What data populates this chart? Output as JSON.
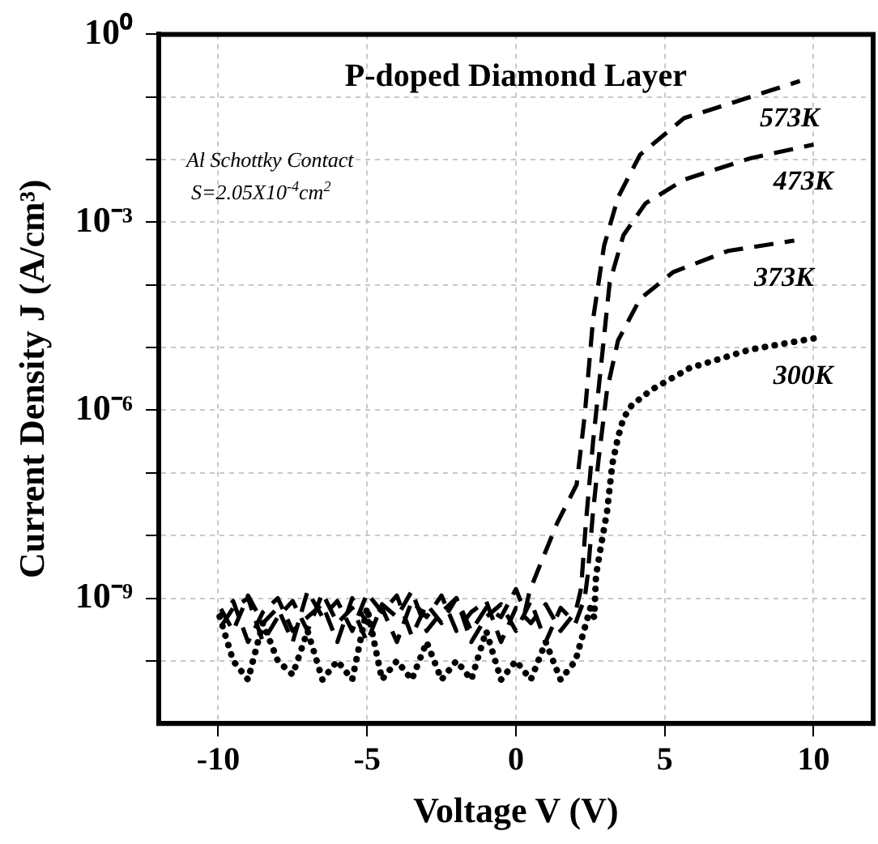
{
  "chart_data": {
    "type": "line",
    "title": "P-doped Diamond Layer",
    "xlabel": "Voltage V (V)",
    "ylabel": "Current Density J (A/cm³)",
    "annotations": [
      "Al Schottky Contact",
      "S=2.05X10$^{-4}$cm$^{2}$"
    ],
    "log": "y",
    "grid": true,
    "legend": false,
    "marker": "none",
    "xlim": [
      -12,
      12
    ],
    "xticks": [
      -10,
      -5,
      0,
      5,
      10
    ],
    "ylim": [
      1e-11,
      1
    ],
    "yticks": [
      {
        "value": 1,
        "label": "10⁰"
      },
      {
        "value": 0.1,
        "label": null
      },
      {
        "value": 0.01,
        "label": null
      },
      {
        "value": 0.001,
        "label": "10⁻³"
      },
      {
        "value": 0.0001,
        "label": null
      },
      {
        "value": 1e-05,
        "label": null
      },
      {
        "value": 1e-06,
        "label": "10⁻⁶"
      },
      {
        "value": 1e-07,
        "label": null
      },
      {
        "value": 1e-08,
        "label": null
      },
      {
        "value": 1e-09,
        "label": "10⁻⁹"
      },
      {
        "value": 1e-10,
        "label": null
      }
    ],
    "series": [
      {
        "name": "573K",
        "color": "#000000",
        "line_style": "dashed",
        "x": [
          -10,
          -9.5,
          -9,
          -8.5,
          -8,
          -7.5,
          -7,
          -6.5,
          -6,
          -5.5,
          -5,
          -4.5,
          -4,
          -3.5,
          -3,
          -2.5,
          -2,
          -1.5,
          -1,
          -0.5,
          0,
          0.3,
          0.46,
          0.74,
          1.39,
          2.04,
          2.31,
          2.59,
          2.96,
          3.43,
          4.17,
          5.65,
          7.87,
          9.54
        ],
        "values": [
          8e-10,
          3e-10,
          1.1e-09,
          4e-10,
          7e-10,
          2e-10,
          1.3e-09,
          5e-10,
          9e-10,
          3e-10,
          1.2e-09,
          6e-10,
          1.1e-09,
          2.5e-10,
          8e-10,
          4e-10,
          1e-09,
          3e-10,
          7e-10,
          5e-10,
          1.4e-09,
          6e-10,
          1.3e-09,
          2.8e-09,
          1.6e-08,
          6.5e-08,
          8.3e-07,
          2.8e-05,
          0.00042,
          0.0025,
          0.012,
          0.046,
          0.1,
          0.18
        ]
      },
      {
        "name": "473K",
        "color": "#000000",
        "line_style": "dashed",
        "x": [
          -10,
          -9.5,
          -9,
          -8.5,
          -8,
          -7.5,
          -7,
          -6.5,
          -6,
          -5.5,
          -5,
          -4.5,
          -4,
          -3.5,
          -3,
          -2.5,
          -2,
          -1.5,
          -1,
          -0.5,
          0,
          0.5,
          1,
          1.5,
          2,
          2.17,
          2.22,
          2.35,
          2.59,
          2.87,
          3.15,
          3.61,
          4.35,
          5.65,
          7.87,
          10
        ],
        "values": [
          5e-10,
          9e-10,
          2e-10,
          6e-10,
          1e-09,
          3e-10,
          5e-10,
          8e-10,
          2e-10,
          1e-09,
          4e-10,
          7e-10,
          2e-10,
          9e-10,
          5e-10,
          1.1e-09,
          3e-10,
          6e-10,
          9e-10,
          2e-10,
          7e-10,
          4e-10,
          8e-10,
          3e-10,
          6e-10,
          1.3e-09,
          2.3e-09,
          1.6e-08,
          3.1e-07,
          5.8e-06,
          0.00011,
          0.00062,
          0.002,
          0.0048,
          0.0105,
          0.0174
        ]
      },
      {
        "name": "373K",
        "color": "#000000",
        "line_style": "dashed",
        "x": [
          -10,
          -9.5,
          -9,
          -8.5,
          -8,
          -7.5,
          -7,
          -6.5,
          -6,
          -5.5,
          -5,
          -4.5,
          -4,
          -3.5,
          -3,
          -2.5,
          -2,
          -1.5,
          -1,
          -0.5,
          0,
          0.5,
          1,
          1.5,
          2,
          2.31,
          2.41,
          2.59,
          2.78,
          3.06,
          3.43,
          4.17,
          5.28,
          7.13,
          9.35
        ],
        "values": [
          3e-10,
          7e-10,
          1e-09,
          2e-10,
          5e-10,
          9e-10,
          3e-10,
          1.2e-09,
          4e-10,
          7e-10,
          2e-10,
          8e-10,
          5e-10,
          1.3e-09,
          3e-10,
          6e-10,
          1e-09,
          2e-10,
          5e-10,
          8e-10,
          3e-10,
          9e-10,
          2e-10,
          7e-10,
          4e-10,
          1e-09,
          2.3e-09,
          2.4e-08,
          1.7e-07,
          2.1e-06,
          1.3e-05,
          6e-05,
          0.00016,
          0.00035,
          0.00051
        ]
      },
      {
        "name": "300K",
        "color": "#000000",
        "line_style": "dotted",
        "x": [
          -10,
          -9.5,
          -9,
          -8.5,
          -8,
          -7.5,
          -7,
          -6.5,
          -6,
          -5.5,
          -5,
          -4.5,
          -4,
          -3.5,
          -3,
          -2.5,
          -2,
          -1.5,
          -1,
          -0.5,
          0,
          0.5,
          1,
          1.5,
          2,
          2.5,
          2.63,
          2.69,
          2.87,
          3.06,
          3.24,
          3.43,
          3.61,
          3.89,
          4.54,
          5.83,
          7.87,
          10
        ],
        "values": [
          6e-10,
          1e-10,
          5e-11,
          4e-10,
          1e-10,
          6e-11,
          3e-10,
          5e-11,
          1e-10,
          5e-11,
          7e-10,
          5e-11,
          1e-10,
          5e-11,
          2e-10,
          5e-11,
          1e-10,
          5e-11,
          3e-10,
          5e-11,
          1e-10,
          5e-11,
          2e-10,
          5e-11,
          1e-10,
          7e-10,
          4.9e-10,
          2.3e-09,
          7.4e-09,
          2.4e-08,
          1.4e-07,
          3.7e-07,
          7.4e-07,
          1.2e-06,
          2.1e-06,
          4.7e-06,
          9.3e-06,
          1.4e-05
        ]
      }
    ]
  }
}
